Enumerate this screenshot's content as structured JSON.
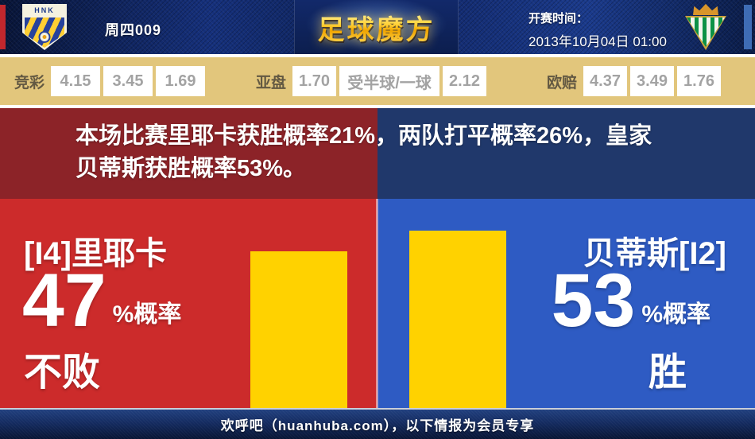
{
  "header": {
    "match_number": "周四009",
    "site_logo": "足球魔方",
    "kickoff_label": "开赛时间：",
    "kickoff_datetime": "2013年10月04日 01:00",
    "home_crest_text": "HNK"
  },
  "odds_bar": {
    "sports_lottery": {
      "label": "竞彩",
      "values": [
        "4.15",
        "3.45",
        "1.69"
      ]
    },
    "asian_handicap": {
      "label": "亚盘",
      "home": "1.70",
      "line": "受半球/一球",
      "away": "2.12"
    },
    "european_odds": {
      "label": "欧赔",
      "values": [
        "4.37",
        "3.49",
        "1.76"
      ]
    }
  },
  "summary": {
    "lines": [
      "本场比赛里耶卡获胜概率21%，两队打平概率26%，皇家",
      "贝蒂斯获胜概率53%。"
    ]
  },
  "home_panel": {
    "team": "[I4]里耶卡",
    "probability": "47",
    "probability_suffix": "%概率",
    "outcome": "不败",
    "bar_percent": 47
  },
  "away_panel": {
    "team": "贝蒂斯[I2]",
    "probability": "53",
    "probability_suffix": "%概率",
    "outcome": "胜",
    "bar_percent": 53
  },
  "footer": {
    "text": "欢呼吧（huanhuba.com），以下情报为会员专享"
  },
  "colors": {
    "home_dark": "#8c2328",
    "home_bright": "#cc2b2b",
    "away_dark": "#20386b",
    "away_bright": "#2e5bc3",
    "bar_yellow": "#ffd200",
    "odds_bg": "#e2c67c",
    "accent_red": "#c1272d",
    "accent_blue": "#3e6cb5"
  }
}
